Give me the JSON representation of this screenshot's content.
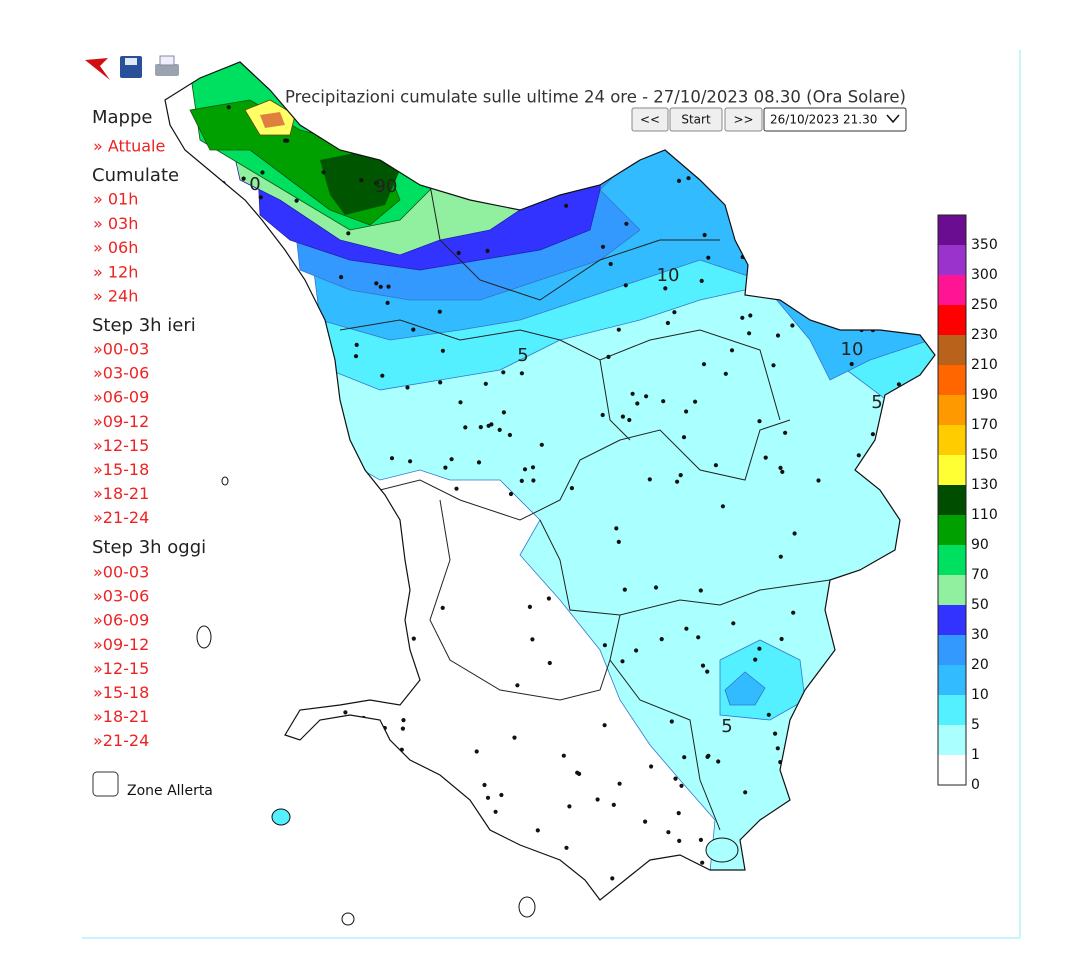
{
  "toolbar": {
    "title": "Precipitazioni cumulate sulle ultime 24 ore - 27/10/2023 08.30 (Ora Solare)",
    "buttons": [
      "<<",
      "Start",
      ">>"
    ],
    "date_select": "26/10/2023 21.30"
  },
  "sidebar": {
    "maps_heading": "Mappe",
    "current": "» Attuale",
    "cumulative_heading": "Cumulate",
    "cumulative": [
      "» 01h",
      "» 03h",
      "» 06h",
      "» 12h",
      "» 24h"
    ],
    "yesterday_heading": "Step 3h ieri",
    "yesterday": [
      "»00-03",
      "»03-06",
      "»06-09",
      "»09-12",
      "»12-15",
      "»15-18",
      "»18-21",
      "»21-24"
    ],
    "today_heading": "Step 3h oggi",
    "today": [
      "»00-03",
      "»03-06",
      "»06-09",
      "»09-12",
      "»12-15",
      "»15-18",
      "»18-21",
      "»21-24"
    ],
    "zones_checkbox": "Zone Allerta"
  },
  "map": {
    "contour_labels": [
      "90",
      "0",
      "10",
      "5",
      "10",
      "5",
      "5"
    ]
  },
  "legend": {
    "labels": [
      350,
      300,
      250,
      230,
      210,
      190,
      170,
      150,
      130,
      110,
      90,
      70,
      50,
      30,
      20,
      10,
      5,
      1,
      0
    ],
    "colors": [
      "#6a0d91",
      "#9933cc",
      "#ff1493",
      "#ff0000",
      "#b8621b",
      "#ff6600",
      "#ff9900",
      "#ffcc00",
      "#ffff33",
      "#004d00",
      "#00a000",
      "#00e060",
      "#90f0a0",
      "#3333ff",
      "#3399ff",
      "#33bbff",
      "#55f0ff",
      "#aaffff",
      "#ffffff"
    ]
  }
}
